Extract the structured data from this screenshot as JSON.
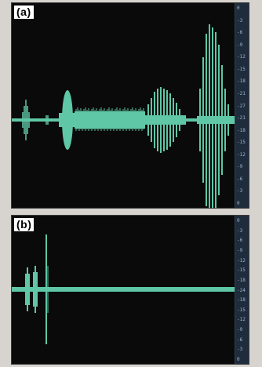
{
  "panels": [
    {
      "label": "(a)",
      "ruler_ticks": [
        "0",
        "-3",
        "-6",
        "-9",
        "-12",
        "-15",
        "-18",
        "-21",
        "-27",
        "-21",
        "-18",
        "-15",
        "-12",
        "-9",
        "-6",
        "-3",
        "0"
      ],
      "waveform_color": "#5fc7a6"
    },
    {
      "label": "(b)",
      "ruler_ticks": [
        "0",
        "-3",
        "-6",
        "-9",
        "-12",
        "-15",
        "-18",
        "-24",
        "-18",
        "-15",
        "-12",
        "-9",
        "-6",
        "-3",
        "0"
      ],
      "waveform_color": "#5fc7a6"
    }
  ]
}
